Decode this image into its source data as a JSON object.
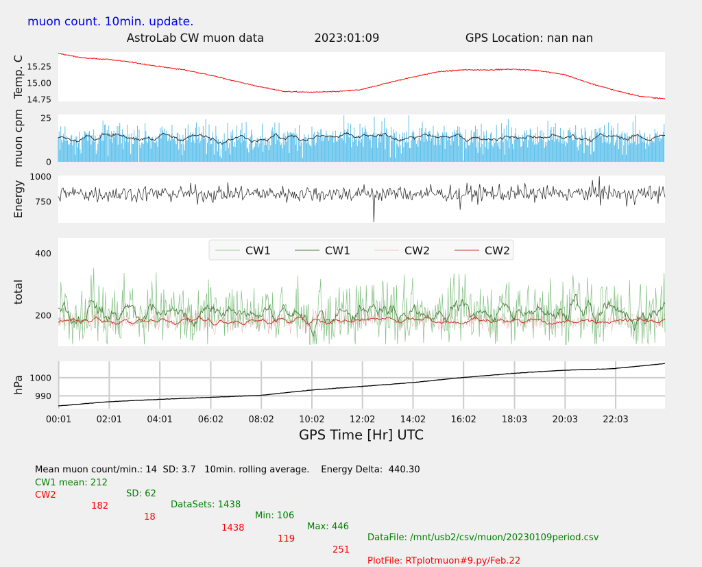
{
  "header": {
    "update_note": "muon count.  10min. update.",
    "title": "AstroLab CW muon data",
    "date": "2023:01:09",
    "gps_location": "GPS Location: nan   nan"
  },
  "colors": {
    "background": "#f0f0f0",
    "plot_bg": "#ffffff",
    "temp": "#ff0000",
    "muon_bar": "#5bc0eb",
    "muon_avg": "#222222",
    "energy": "#333333",
    "cw1_raw": "#7fbf7f",
    "cw1_avg": "#4a7a3a",
    "cw2_raw": "#f2b6b6",
    "cw2_avg": "#c0392b",
    "pressure": "#000000",
    "blue_text": "#0000ee",
    "green_text": "#008000",
    "red_text": "#ff0000"
  },
  "chart_data": [
    {
      "type": "line",
      "panel": "temperature",
      "ylabel": "Temp. C",
      "yticks": [
        "15.25",
        "15.00",
        "14.75"
      ],
      "ylim": [
        14.72,
        15.47
      ],
      "x_hours": [
        0,
        1,
        2,
        3,
        4,
        5,
        6,
        7,
        8,
        9,
        10,
        11,
        12,
        13,
        14,
        15,
        16,
        17,
        18,
        19,
        20,
        21,
        22,
        23,
        24
      ],
      "values": [
        15.45,
        15.38,
        15.36,
        15.31,
        15.25,
        15.2,
        15.12,
        15.03,
        14.94,
        14.87,
        14.86,
        14.87,
        14.9,
        15.0,
        15.09,
        15.17,
        15.2,
        15.2,
        15.21,
        15.19,
        15.13,
        15.0,
        14.89,
        14.8,
        14.76
      ]
    },
    {
      "type": "bar",
      "panel": "muon_cpm",
      "ylabel": "muon cpm",
      "yticks": [
        "25",
        "0"
      ],
      "ylim": [
        0,
        27
      ],
      "rolling_average_level": 14,
      "sd": 3.7,
      "points_per_day": 1440
    },
    {
      "type": "line",
      "panel": "energy",
      "ylabel": "Energy",
      "yticks": [
        "1000",
        "750"
      ],
      "ylim": [
        540,
        1010
      ],
      "level": 830,
      "delta": 440.3
    },
    {
      "type": "line",
      "panel": "total",
      "ylabel": "total",
      "yticks": [
        "400",
        "200"
      ],
      "ylim": [
        100,
        450
      ],
      "legend": [
        "CW1",
        "CW1",
        "CW2",
        "CW2"
      ],
      "legend_position": "top-center",
      "series": [
        {
          "name": "CW1",
          "style": "raw",
          "mean": 212,
          "sd": 62,
          "min": 106,
          "max": 446
        },
        {
          "name": "CW1",
          "style": "average",
          "mean": 212
        },
        {
          "name": "CW2",
          "style": "raw",
          "mean": 182,
          "sd": 18,
          "min": 119,
          "max": 251
        },
        {
          "name": "CW2",
          "style": "average",
          "mean": 182
        }
      ]
    },
    {
      "type": "line",
      "panel": "pressure",
      "ylabel": "hPa",
      "yticks": [
        "1000",
        "990"
      ],
      "ylim": [
        983,
        1009
      ],
      "grid": true,
      "x_hours": [
        0,
        2,
        4,
        6,
        8,
        10,
        12,
        14,
        16,
        18,
        20,
        22,
        24
      ],
      "values": [
        984.5,
        986.8,
        988.1,
        989.2,
        990.3,
        993.2,
        995.2,
        997.3,
        1000.1,
        1002.4,
        1004.1,
        1005.0,
        1007.8
      ]
    }
  ],
  "xaxis": {
    "label": "GPS Time  [Hr] UTC",
    "ticks": [
      "00:01",
      "02:01",
      "04:01",
      "06:02",
      "08:02",
      "10:02",
      "12:02",
      "14:02",
      "16:02",
      "18:03",
      "20:03",
      "22:03"
    ],
    "tick_hours": [
      0.017,
      2.017,
      4.017,
      6.033,
      8.033,
      10.033,
      12.033,
      14.033,
      16.033,
      18.05,
      20.05,
      22.05
    ]
  },
  "stats": {
    "line1": "Mean muon count/min.: 14  SD: 3.7   10min. rolling average.    Energy Delta:  440.30",
    "cw1": {
      "label": "CW1 mean: 212",
      "sd": "SD: 62",
      "datasets": "DataSets: 1438",
      "min": "Min: 106",
      "max": "Max: 446",
      "file": "DataFile: /mnt/usb2/csv/muon/20230109period.csv"
    },
    "cw2": {
      "label": "CW2",
      "mean": "182",
      "sd": "18",
      "datasets": "1438",
      "min": "119",
      "max": "251",
      "file": "PlotFile: RTplotmuon#9.py/Feb.22"
    }
  }
}
